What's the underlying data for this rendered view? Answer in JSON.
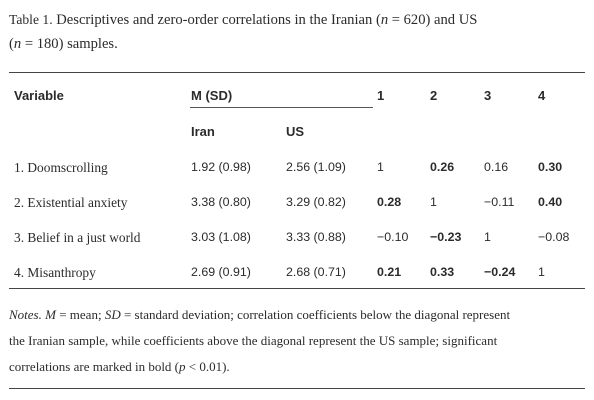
{
  "caption": {
    "label": "Table 1.",
    "text_a": " Descriptives and zero-order correlations in the Iranian (",
    "n1_sym": "n",
    "n1_val": " = 620) and US",
    "paren_open": "(",
    "n2_sym": "n",
    "n2_val": " = 180) samples."
  },
  "header": {
    "variable": "Variable",
    "msd": "M (SD)",
    "iran": "Iran",
    "us": "US",
    "c1": "1",
    "c2": "2",
    "c3": "3",
    "c4": "4"
  },
  "rows": [
    {
      "name": "1. Doomscrolling",
      "iran": "1.92 (0.98)",
      "us": "2.56 (1.09)",
      "c1": "1",
      "c2": "0.26",
      "c3": "0.16",
      "c4": "0.30"
    },
    {
      "name": "2. Existential anxiety",
      "iran": "3.38 (0.80)",
      "us": "3.29 (0.82)",
      "c1": "0.28",
      "c2": "1",
      "c3": "−0.11",
      "c4": "0.40"
    },
    {
      "name": "3. Belief in a just world",
      "iran": "3.03 (1.08)",
      "us": "3.33 (0.88)",
      "c1": "−0.10",
      "c2": "−0.23",
      "c3": "1",
      "c4": "−0.08"
    },
    {
      "name": "4. Misanthropy",
      "iran": "2.69 (0.91)",
      "us": "2.68 (0.71)",
      "c1": "0.21",
      "c2": "0.33",
      "c3": "−0.24",
      "c4": "1"
    }
  ],
  "bold_cells": [
    [
      false,
      true,
      false,
      true
    ],
    [
      true,
      false,
      false,
      true
    ],
    [
      false,
      true,
      false,
      false
    ],
    [
      true,
      true,
      true,
      false
    ]
  ],
  "notes": {
    "label": "Notes.",
    "m_sym": "M",
    "m_def": " = mean; ",
    "sd_sym": "SD",
    "sd_def": " = standard deviation; correlation coefficients below the diagonal represent",
    "line2": "the Iranian sample, while coefficients above the diagonal represent the US sample; significant",
    "line3a": "correlations are marked in bold (",
    "p_sym": "p",
    "line3b": " < 0.01)."
  }
}
